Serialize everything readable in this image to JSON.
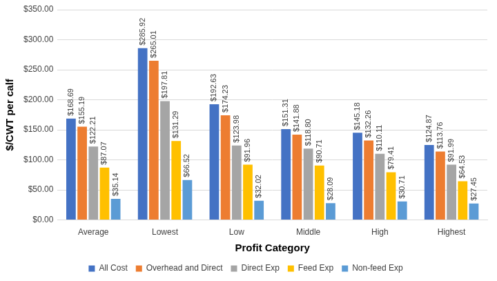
{
  "chart_data": {
    "type": "bar",
    "x_label": "Profit Category",
    "y_label": "$/CWT per calf",
    "categories": [
      "Average",
      "Lowest",
      "Low",
      "Middle",
      "High",
      "Highest"
    ],
    "series": [
      {
        "name": "All Cost",
        "color": "#4472c4",
        "values": [
          168.69,
          285.92,
          192.63,
          151.31,
          145.18,
          124.87
        ],
        "value_labels": [
          "$168.69",
          "$285.92",
          "$192.63",
          "$151.31",
          "$145.18",
          "$124.87"
        ]
      },
      {
        "name": "Overhead and Direct",
        "color": "#ed7d31",
        "values": [
          155.19,
          265.01,
          174.23,
          141.88,
          132.26,
          113.76
        ],
        "value_labels": [
          "$155.19",
          "$265.01",
          "$174.23",
          "$141.88",
          "$132.26",
          "$113.76"
        ]
      },
      {
        "name": "Direct Exp",
        "color": "#a5a5a5",
        "values": [
          122.21,
          197.81,
          123.98,
          118.8,
          110.11,
          91.99
        ],
        "value_labels": [
          "$122.21",
          "$197.81",
          "$123.98",
          "$118.80",
          "$110.11",
          "$91.99"
        ]
      },
      {
        "name": "Feed Exp",
        "color": "#ffc000",
        "values": [
          87.07,
          131.29,
          91.96,
          90.71,
          79.41,
          64.53
        ],
        "value_labels": [
          "$87.07",
          "$131.29",
          "$91.96",
          "$90.71",
          "$79.41",
          "$64.53"
        ]
      },
      {
        "name": "Non-feed Exp",
        "color": "#5b9bd5",
        "values": [
          35.14,
          66.52,
          32.02,
          28.09,
          30.71,
          27.45
        ],
        "value_labels": [
          "$35.14",
          "$66.52",
          "$32.02",
          "$28.09",
          "$30.71",
          "$27.45"
        ]
      }
    ],
    "ylim": [
      0,
      350
    ],
    "yticks": [
      {
        "value": 0,
        "label": "$0.00"
      },
      {
        "value": 50,
        "label": "$50.00"
      },
      {
        "value": 100,
        "label": "$100.00"
      },
      {
        "value": 150,
        "label": "$150.00"
      },
      {
        "value": 200,
        "label": "$200.00"
      },
      {
        "value": 250,
        "label": "$250.00"
      },
      {
        "value": 300,
        "label": "$300.00"
      },
      {
        "value": 350,
        "label": "$350.00"
      }
    ],
    "grid": true,
    "legend": "bottom",
    "data_labels": true
  }
}
